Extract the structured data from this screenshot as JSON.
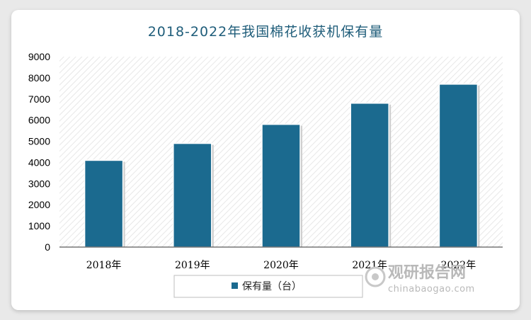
{
  "chart_data": {
    "type": "bar",
    "title": "2018-2022年我国棉花收获机保有量",
    "categories": [
      "2018年",
      "2019年",
      "2020年",
      "2021年",
      "2022年"
    ],
    "series": [
      {
        "name": "保有量（台）",
        "values": [
          4100,
          4900,
          5800,
          6800,
          7700
        ]
      }
    ],
    "ylim": [
      0,
      9000
    ],
    "yticks": [
      0,
      1000,
      2000,
      3000,
      4000,
      5000,
      6000,
      7000,
      8000,
      9000
    ],
    "xlabel": "",
    "ylabel": "",
    "grid": false,
    "legend_position": "bottom",
    "bar_color": "#1b6a8f"
  },
  "watermark": {
    "text_cn": "观研报告网",
    "text_en": "chinabaogao.com"
  }
}
